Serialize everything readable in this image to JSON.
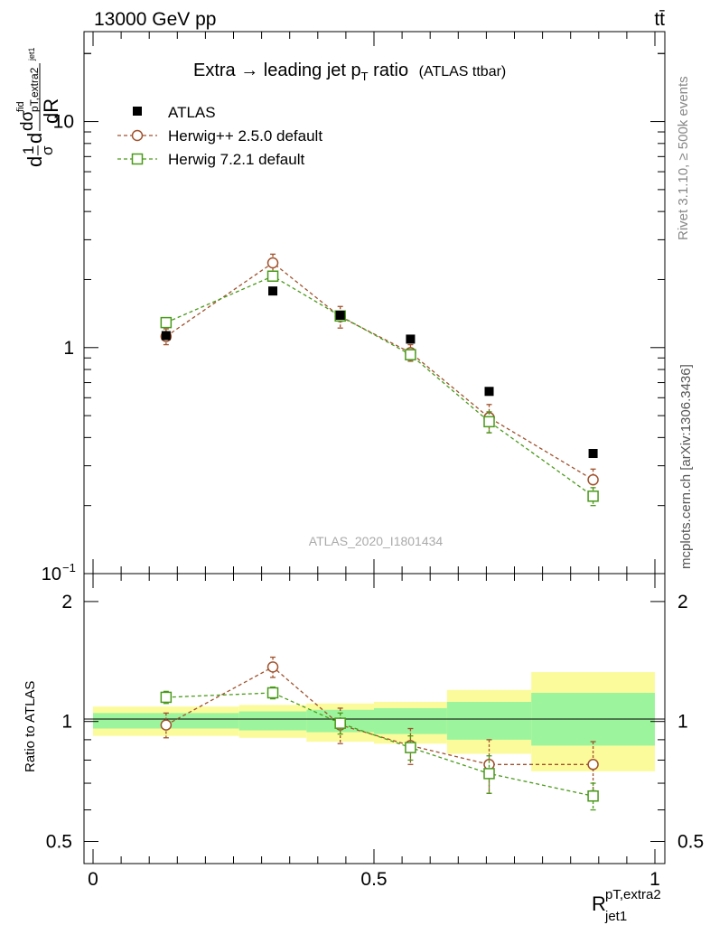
{
  "header": {
    "energy": "13000 GeV pp",
    "process": "tt̄"
  },
  "side": {
    "rivet": "Rivet 3.1.10, ≥ 500k events",
    "mcplots": "mcplots.cern.ch [arXiv:1306.3436]"
  },
  "chart_data": {
    "type": "line",
    "title": "Extra → leading jet p",
    "title_sub": "T",
    "title_after": " ratio",
    "title_note": "(ATLAS ttbar)",
    "analysis": "ATLAS_2020_I1801434",
    "ylabel_main": "1/σ dσ^fid/dR^pT,extra2_jet1",
    "ylabel_ratio": "Ratio to ATLAS",
    "xlabel_main": "R",
    "xlabel_sup": "pT,extra2",
    "xlabel_sub": "jet1",
    "xlim": [
      0,
      1
    ],
    "main_ylim": [
      0.1,
      25
    ],
    "main_yscale": "log",
    "ratio_ylim": [
      0.44,
      2.35
    ],
    "x_ticks": [
      {
        "v": 0,
        "label": "0"
      },
      {
        "v": 0.5,
        "label": "0.5"
      },
      {
        "v": 1,
        "label": "1"
      }
    ],
    "main_y_ticks": [
      {
        "v": 0.1,
        "label": "10",
        "sup": "−1"
      },
      {
        "v": 1,
        "label": "1",
        "sup": ""
      },
      {
        "v": 10,
        "label": "10",
        "sup": ""
      }
    ],
    "ratio_y_ticks": [
      {
        "v": 0.5,
        "label": "0.5"
      },
      {
        "v": 1,
        "label": "1"
      },
      {
        "v": 2,
        "label": "2"
      }
    ],
    "x": [
      0.13,
      0.32,
      0.44,
      0.565,
      0.705,
      0.89
    ],
    "bin_edges": [
      0,
      0.26,
      0.38,
      0.5,
      0.63,
      0.78,
      1.0
    ],
    "band_total": [
      [
        0.92,
        1.09
      ],
      [
        0.91,
        1.1
      ],
      [
        0.89,
        1.11
      ],
      [
        0.88,
        1.12
      ],
      [
        0.83,
        1.2
      ],
      [
        0.75,
        1.33
      ]
    ],
    "band_stat": [
      [
        0.96,
        1.05
      ],
      [
        0.95,
        1.06
      ],
      [
        0.94,
        1.07
      ],
      [
        0.93,
        1.08
      ],
      [
        0.9,
        1.12
      ],
      [
        0.87,
        1.18
      ]
    ],
    "series": [
      {
        "name": "ATLAS",
        "color": "#000000",
        "marker": "filled-square",
        "values": [
          1.13,
          1.78,
          1.39,
          1.09,
          0.64,
          0.34
        ]
      },
      {
        "name": "Herwig++ 2.5.0 default",
        "color": "#a0522d",
        "marker": "open-circle",
        "values": [
          1.12,
          2.37,
          1.37,
          0.95,
          0.49,
          0.26
        ],
        "err": [
          0.09,
          0.22,
          0.15,
          0.08,
          0.07,
          0.03
        ],
        "ratio": [
          0.98,
          1.37,
          0.98,
          0.87,
          0.78,
          0.78
        ],
        "ratio_err": [
          0.07,
          0.08,
          0.1,
          0.09,
          0.12,
          0.11
        ]
      },
      {
        "name": "Herwig 7.2.1 default",
        "color": "#4a9a1a",
        "marker": "open-square",
        "values": [
          1.29,
          2.07,
          1.38,
          0.93,
          0.47,
          0.22
        ],
        "err": [
          0.05,
          0.07,
          0.07,
          0.05,
          0.05,
          0.02
        ],
        "ratio": [
          1.15,
          1.18,
          0.99,
          0.86,
          0.74,
          0.65
        ],
        "ratio_err": [
          0.04,
          0.04,
          0.06,
          0.06,
          0.08,
          0.05
        ]
      }
    ]
  }
}
